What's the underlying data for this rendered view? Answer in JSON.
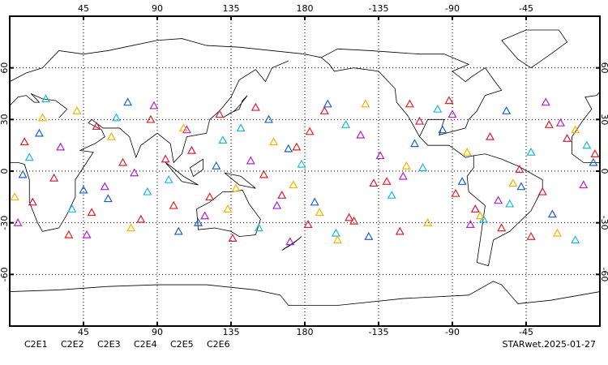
{
  "chart_data": {
    "type": "scatter",
    "marker": "triangle",
    "xlim": [
      0,
      360
    ],
    "ylim": [
      -90,
      90
    ],
    "xticks": [
      45,
      90,
      135,
      180,
      {
        "value": 225,
        "label": "-135"
      },
      {
        "value": 270,
        "label": "-90"
      },
      {
        "value": 315,
        "label": "-45"
      }
    ],
    "yticks": [
      -60,
      -30,
      0,
      30,
      60
    ],
    "grid": true,
    "annotation": "STARwet.2025-01-27",
    "series": [
      {
        "name": "C2E1",
        "color": "#1fb8d8",
        "x": [
          12,
          38,
          65,
          97,
          130,
          152,
          178,
          205,
          233,
          261,
          289,
          318,
          345,
          22,
          84,
          141,
          199,
          252,
          305,
          352
        ],
        "y": [
          8,
          -22,
          31,
          -5,
          18,
          -33,
          4,
          27,
          -14,
          36,
          -28,
          11,
          -40,
          42,
          -12,
          25,
          -36,
          2,
          -19,
          15
        ]
      },
      {
        "name": "C2E2",
        "color": "#b020d0",
        "x": [
          5,
          31,
          58,
          88,
          119,
          147,
          171,
          214,
          240,
          270,
          298,
          327,
          350,
          47,
          108,
          163,
          226,
          281,
          336,
          76
        ],
        "y": [
          -30,
          14,
          -9,
          38,
          -26,
          6,
          -41,
          21,
          -3,
          33,
          -17,
          40,
          -8,
          -37,
          24,
          -20,
          9,
          -31,
          28,
          -1
        ]
      },
      {
        "name": "C2E3",
        "color": "#1f5fd0",
        "x": [
          18,
          45,
          72,
          103,
          126,
          158,
          186,
          219,
          247,
          276,
          303,
          331,
          356,
          60,
          115,
          194,
          264,
          312,
          8,
          170
        ],
        "y": [
          22,
          -11,
          40,
          -35,
          3,
          30,
          -18,
          -38,
          16,
          -6,
          35,
          -25,
          5,
          -16,
          -30,
          39,
          24,
          -9,
          -2,
          13
        ]
      },
      {
        "name": "C2E4",
        "color": "#d81c3c",
        "x": [
          27,
          53,
          80,
          111,
          136,
          166,
          192,
          222,
          250,
          284,
          311,
          340,
          14,
          95,
          150,
          207,
          238,
          293,
          325,
          182
        ],
        "y": [
          -4,
          26,
          -28,
          12,
          -39,
          -14,
          35,
          -7,
          29,
          -22,
          1,
          19,
          -18,
          7,
          37,
          -27,
          -35,
          20,
          -12,
          -31
        ]
      },
      {
        "name": "C2E5",
        "color": "#e82020",
        "x": [
          9,
          36,
          69,
          100,
          128,
          155,
          183,
          210,
          244,
          272,
          300,
          329,
          357,
          50,
          122,
          175,
          230,
          268,
          318,
          86
        ],
        "y": [
          17,
          -37,
          5,
          -20,
          33,
          -2,
          23,
          -29,
          39,
          -13,
          -33,
          27,
          10,
          -24,
          -15,
          14,
          -6,
          41,
          -38,
          30
        ]
      },
      {
        "name": "C2E6",
        "color": "#f8b400",
        "x": [
          3,
          41,
          74,
          106,
          138,
          161,
          189,
          217,
          255,
          279,
          307,
          334,
          20,
          62,
          133,
          200,
          242,
          287,
          345,
          173
        ],
        "y": [
          -15,
          35,
          -33,
          25,
          -10,
          17,
          -24,
          39,
          -30,
          11,
          -7,
          -36,
          31,
          20,
          -22,
          -40,
          3,
          -26,
          24,
          -8
        ]
      }
    ]
  }
}
